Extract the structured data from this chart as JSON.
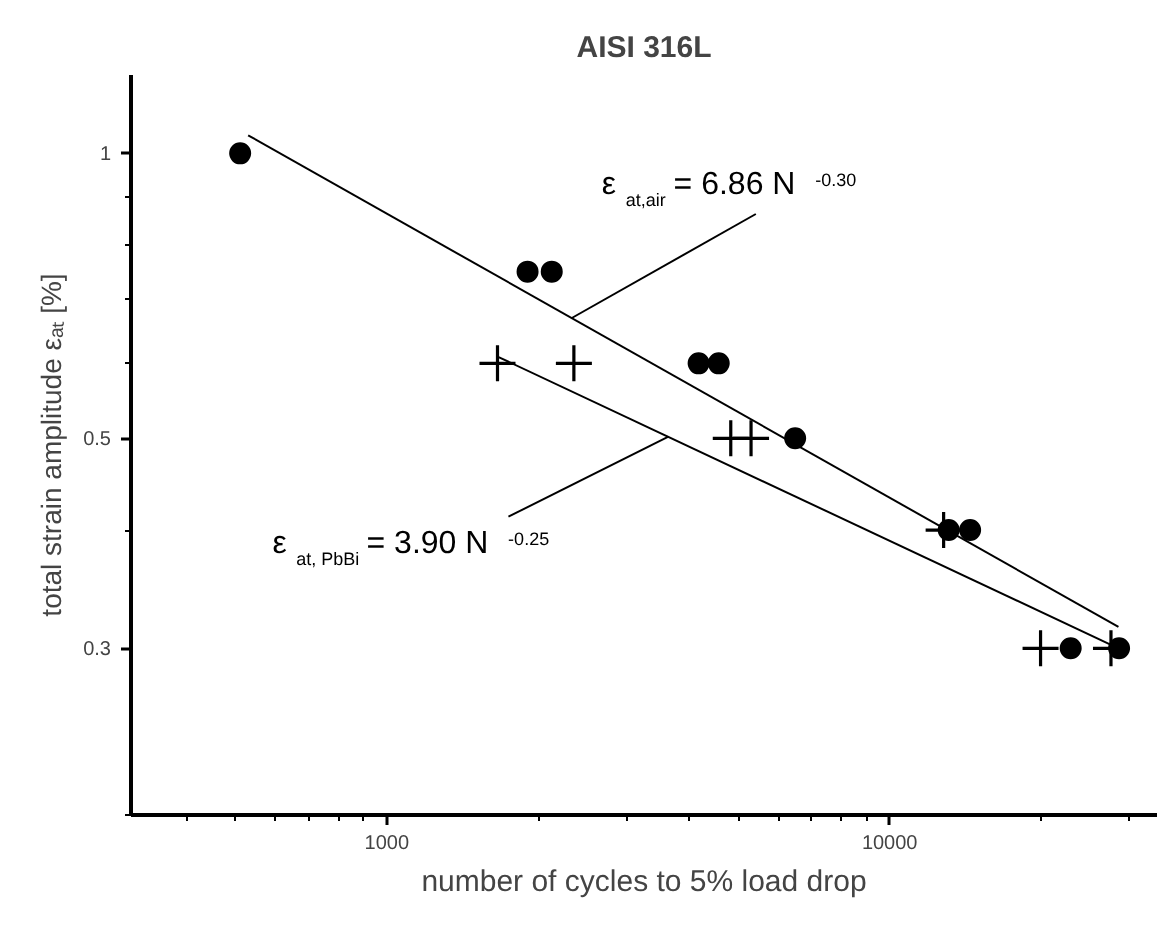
{
  "chart_data": {
    "type": "scatter",
    "title": "AISI 316L",
    "xlabel": "number of cycles to 5% load drop",
    "ylabel": "total strain amplitude εₐₜ [%]",
    "log": "xy",
    "grid": false,
    "xlim": [
      310,
      34000
    ],
    "ylim": [
      0.2,
      1.21
    ],
    "xticks": [
      {
        "value": 400,
        "label": null
      },
      {
        "value": 500,
        "label": null
      },
      {
        "value": 600,
        "label": null
      },
      {
        "value": 700,
        "label": null
      },
      {
        "value": 800,
        "label": null
      },
      {
        "value": 900,
        "label": null
      },
      1000,
      {
        "value": 2000,
        "label": null
      },
      {
        "value": 3000,
        "label": null
      },
      {
        "value": 4000,
        "label": null
      },
      {
        "value": 5000,
        "label": null
      },
      {
        "value": 6000,
        "label": null
      },
      {
        "value": 7000,
        "label": null
      },
      {
        "value": 8000,
        "label": null
      },
      {
        "value": 9000,
        "label": null
      },
      10000,
      {
        "value": 20000,
        "label": null
      },
      {
        "value": 30000,
        "label": null
      }
    ],
    "yticks": [
      {
        "value": 0.2,
        "label": null
      },
      0.3,
      {
        "value": 0.4,
        "label": null
      },
      0.5,
      {
        "value": 0.6,
        "label": null
      },
      {
        "value": 0.7,
        "label": null
      },
      {
        "value": 0.8,
        "label": null
      },
      {
        "value": 0.9,
        "label": null
      },
      1
    ],
    "series": [
      {
        "marker": "circle",
        "color": "#000000",
        "x": [
          511,
          1905,
          2128,
          4169,
          4571,
          6486,
          13100,
          14450,
          22900,
          28580
        ],
        "values": [
          1.0,
          0.75,
          0.75,
          0.6,
          0.6,
          0.5,
          0.4,
          0.4,
          0.3,
          0.3
        ]
      },
      {
        "marker": "cross",
        "color": "#000000",
        "x": [
          1660,
          2355,
          4830,
          5300,
          12800,
          19950,
          27540
        ],
        "values": [
          0.6,
          0.6,
          0.5,
          0.5,
          0.4,
          0.3,
          0.3
        ]
      },
      {
        "type": "line",
        "line_style": "solid",
        "color": "#000000",
        "x": [
          530,
          28500
        ],
        "values": [
          1.045,
          0.316
        ]
      },
      {
        "type": "line",
        "line_style": "solid",
        "color": "#000000",
        "x": [
          1660,
          28500
        ],
        "values": [
          0.61,
          0.3
        ]
      }
    ],
    "annotations": [
      {
        "text": "ε$_{at,air}$ = 6.86 N$^{-0.30}$",
        "x": 2333,
        "y": 0.67
      },
      {
        "text": "ε$_{at, PbBi}$ = 3.90 N$^{-0.25}$",
        "x": 3631,
        "y": 0.502
      }
    ]
  }
}
